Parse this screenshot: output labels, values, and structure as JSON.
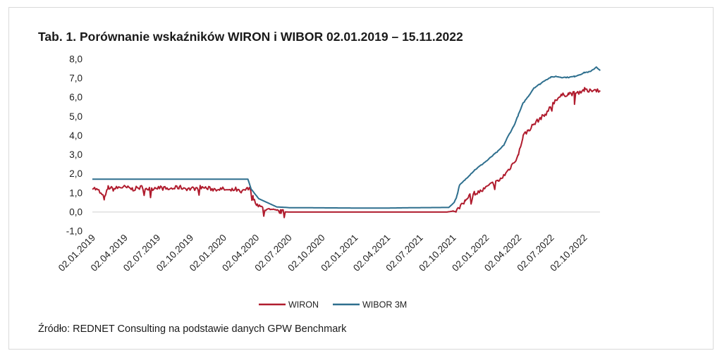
{
  "title": "Tab. 1. Porównanie wskaźników WIRON i WIBOR 02.01.2019 – 15.11.2022",
  "source": "Źródło: REDNET Consulting na podstawie danych GPW Benchmark",
  "chart_data": {
    "type": "line",
    "title": "Tab. 1. Porównanie wskaźników WIRON i WIBOR 02.01.2019 – 15.11.2022",
    "xlabel": "",
    "ylabel": "",
    "ylim": [
      -1.0,
      8.0
    ],
    "y_ticks": [
      "8,0",
      "7,0",
      "6,0",
      "5,0",
      "4,0",
      "3,0",
      "2,0",
      "1,0",
      "0,0",
      "-1,0"
    ],
    "x_ticks": [
      "02.01.2019",
      "02.04.2019",
      "02.07.2019",
      "02.10.2019",
      "02.01.2020",
      "02.04.2020",
      "02.07.2020",
      "02.10.2020",
      "02.01.2021",
      "02.04.2021",
      "02.07.2021",
      "02.10.2021",
      "02.01.2022",
      "02.04.2022",
      "02.07.2022",
      "02.10.2022"
    ],
    "legend_position": "bottom",
    "grid": false,
    "colors": {
      "WIRON": "#b01c2e",
      "WIBOR 3M": "#2e6f8e"
    },
    "series": [
      {
        "name": "WIRON",
        "x": [
          "2019-01-02",
          "2019-01-20",
          "2019-02-05",
          "2019-02-15",
          "2019-03-01",
          "2019-03-20",
          "2019-04-02",
          "2019-04-25",
          "2019-05-20",
          "2019-06-10",
          "2019-07-02",
          "2019-08-01",
          "2019-09-01",
          "2019-10-02",
          "2019-11-01",
          "2019-12-01",
          "2020-01-02",
          "2020-01-20",
          "2020-02-05",
          "2020-02-20",
          "2020-03-05",
          "2020-03-18",
          "2020-03-25",
          "2020-04-05",
          "2020-04-20",
          "2020-05-05",
          "2020-05-25",
          "2020-06-10",
          "2020-07-02",
          "2020-10-02",
          "2021-01-04",
          "2021-04-02",
          "2021-07-02",
          "2021-09-15",
          "2021-10-02",
          "2021-10-10",
          "2021-10-20",
          "2021-11-05",
          "2021-11-15",
          "2021-12-02",
          "2021-12-20",
          "2022-01-04",
          "2022-01-20",
          "2022-02-05",
          "2022-02-20",
          "2022-03-05",
          "2022-03-20",
          "2022-04-02",
          "2022-04-15",
          "2022-05-01",
          "2022-05-15",
          "2022-06-01",
          "2022-06-15",
          "2022-07-01",
          "2022-07-15",
          "2022-08-01",
          "2022-08-20",
          "2022-09-05",
          "2022-09-20",
          "2022-10-03",
          "2022-10-15",
          "2022-10-25",
          "2022-11-05",
          "2022-11-15"
        ],
        "values": [
          1.3,
          1.1,
          0.7,
          1.3,
          1.2,
          1.3,
          1.3,
          1.2,
          1.3,
          1.2,
          1.3,
          1.2,
          1.3,
          1.2,
          1.3,
          1.2,
          1.2,
          1.1,
          1.2,
          1.0,
          1.2,
          1.2,
          0.7,
          0.4,
          0.2,
          0.1,
          0.05,
          0.02,
          0.0,
          0.0,
          0.0,
          0.0,
          0.0,
          0.0,
          0.05,
          0.1,
          0.2,
          0.6,
          0.9,
          1.0,
          1.1,
          1.3,
          1.5,
          1.6,
          1.9,
          2.2,
          2.6,
          3.0,
          4.0,
          4.3,
          4.6,
          4.9,
          5.1,
          5.5,
          5.9,
          6.1,
          6.2,
          6.2,
          6.3,
          6.4,
          6.3,
          6.4,
          6.4,
          6.3
        ]
      },
      {
        "name": "WIBOR 3M",
        "x": [
          "2019-01-02",
          "2020-03-10",
          "2020-03-19",
          "2020-04-09",
          "2020-05-29",
          "2020-07-02",
          "2020-10-02",
          "2021-01-04",
          "2021-04-02",
          "2021-07-02",
          "2021-09-20",
          "2021-10-05",
          "2021-10-12",
          "2021-10-20",
          "2021-11-05",
          "2021-11-15",
          "2021-12-01",
          "2021-12-15",
          "2022-01-05",
          "2022-01-20",
          "2022-02-05",
          "2022-02-20",
          "2022-03-05",
          "2022-03-20",
          "2022-04-02",
          "2022-04-15",
          "2022-05-01",
          "2022-05-15",
          "2022-06-01",
          "2022-06-15",
          "2022-07-01",
          "2022-07-15",
          "2022-08-01",
          "2022-08-20",
          "2022-09-05",
          "2022-09-20",
          "2022-10-03",
          "2022-10-20",
          "2022-11-05",
          "2022-11-15"
        ],
        "values": [
          1.72,
          1.72,
          1.2,
          0.7,
          0.27,
          0.23,
          0.22,
          0.21,
          0.21,
          0.23,
          0.24,
          0.5,
          0.8,
          1.4,
          1.7,
          1.9,
          2.2,
          2.4,
          2.7,
          2.95,
          3.2,
          3.5,
          4.0,
          4.5,
          5.1,
          5.7,
          6.1,
          6.5,
          6.7,
          6.9,
          7.05,
          7.1,
          7.05,
          7.05,
          7.1,
          7.2,
          7.3,
          7.35,
          7.6,
          7.4
        ]
      }
    ]
  }
}
